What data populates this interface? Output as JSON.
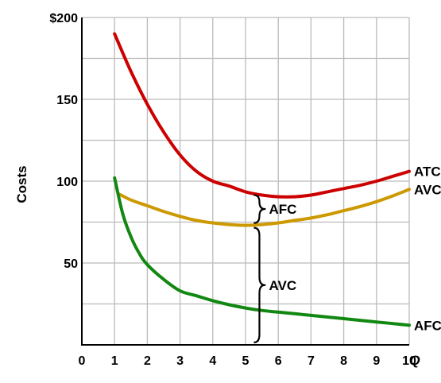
{
  "chart_data": {
    "type": "line",
    "title": "",
    "xlabel": "Q",
    "ylabel": "Costs",
    "xlim": [
      0,
      10
    ],
    "ylim": [
      0,
      200
    ],
    "grid": true,
    "x_ticks": [
      "0",
      "1",
      "2",
      "3",
      "4",
      "5",
      "6",
      "7",
      "8",
      "9",
      "10"
    ],
    "y_ticks": [
      {
        "value": 50,
        "label": "50"
      },
      {
        "value": 100,
        "label": "100"
      },
      {
        "value": 150,
        "label": "150"
      },
      {
        "value": 200,
        "label": "$200"
      }
    ],
    "series": [
      {
        "name": "ATC",
        "color": "#cc0000",
        "points": [
          [
            1,
            190
          ],
          [
            1.5,
            167
          ],
          [
            2,
            147
          ],
          [
            2.5,
            130
          ],
          [
            3,
            116
          ],
          [
            3.5,
            106
          ],
          [
            4,
            100
          ],
          [
            4.5,
            97
          ],
          [
            5,
            93.5
          ],
          [
            5.5,
            91.5
          ],
          [
            6,
            90.5
          ],
          [
            6.5,
            90.5
          ],
          [
            7,
            91.5
          ],
          [
            7.5,
            93.5
          ],
          [
            8,
            95.5
          ],
          [
            8.5,
            97.5
          ],
          [
            9,
            100
          ],
          [
            9.5,
            103
          ],
          [
            10,
            106
          ]
        ]
      },
      {
        "name": "AVC",
        "color": "#cc9900",
        "points": [
          [
            1.15,
            92
          ],
          [
            1.5,
            88.5
          ],
          [
            2,
            85
          ],
          [
            2.5,
            81.5
          ],
          [
            3,
            78.5
          ],
          [
            3.5,
            76
          ],
          [
            4,
            74.5
          ],
          [
            4.5,
            73.5
          ],
          [
            5,
            73
          ],
          [
            5.5,
            73.5
          ],
          [
            6,
            74.5
          ],
          [
            6.5,
            76
          ],
          [
            7,
            77.5
          ],
          [
            7.5,
            79.5
          ],
          [
            8,
            82
          ],
          [
            8.5,
            84.5
          ],
          [
            9,
            87.5
          ],
          [
            9.5,
            91
          ],
          [
            10,
            95
          ]
        ]
      },
      {
        "name": "AFC",
        "color": "#118811",
        "points": [
          [
            1,
            102
          ],
          [
            1.25,
            80
          ],
          [
            1.5,
            66
          ],
          [
            1.75,
            56
          ],
          [
            2,
            49
          ],
          [
            2.5,
            40
          ],
          [
            3,
            33
          ],
          [
            3.5,
            30
          ],
          [
            4,
            27
          ],
          [
            4.5,
            24.5
          ],
          [
            5,
            22.5
          ],
          [
            5.5,
            21
          ],
          [
            6,
            20
          ],
          [
            7,
            18
          ],
          [
            8,
            16
          ],
          [
            9,
            14
          ],
          [
            10,
            12
          ]
        ]
      }
    ],
    "annotations": [
      {
        "label": "AFC",
        "x": 5.4,
        "from": 73,
        "to": 93
      },
      {
        "label": "AVC",
        "x": 5.4,
        "from": 0,
        "to": 73
      }
    ]
  }
}
